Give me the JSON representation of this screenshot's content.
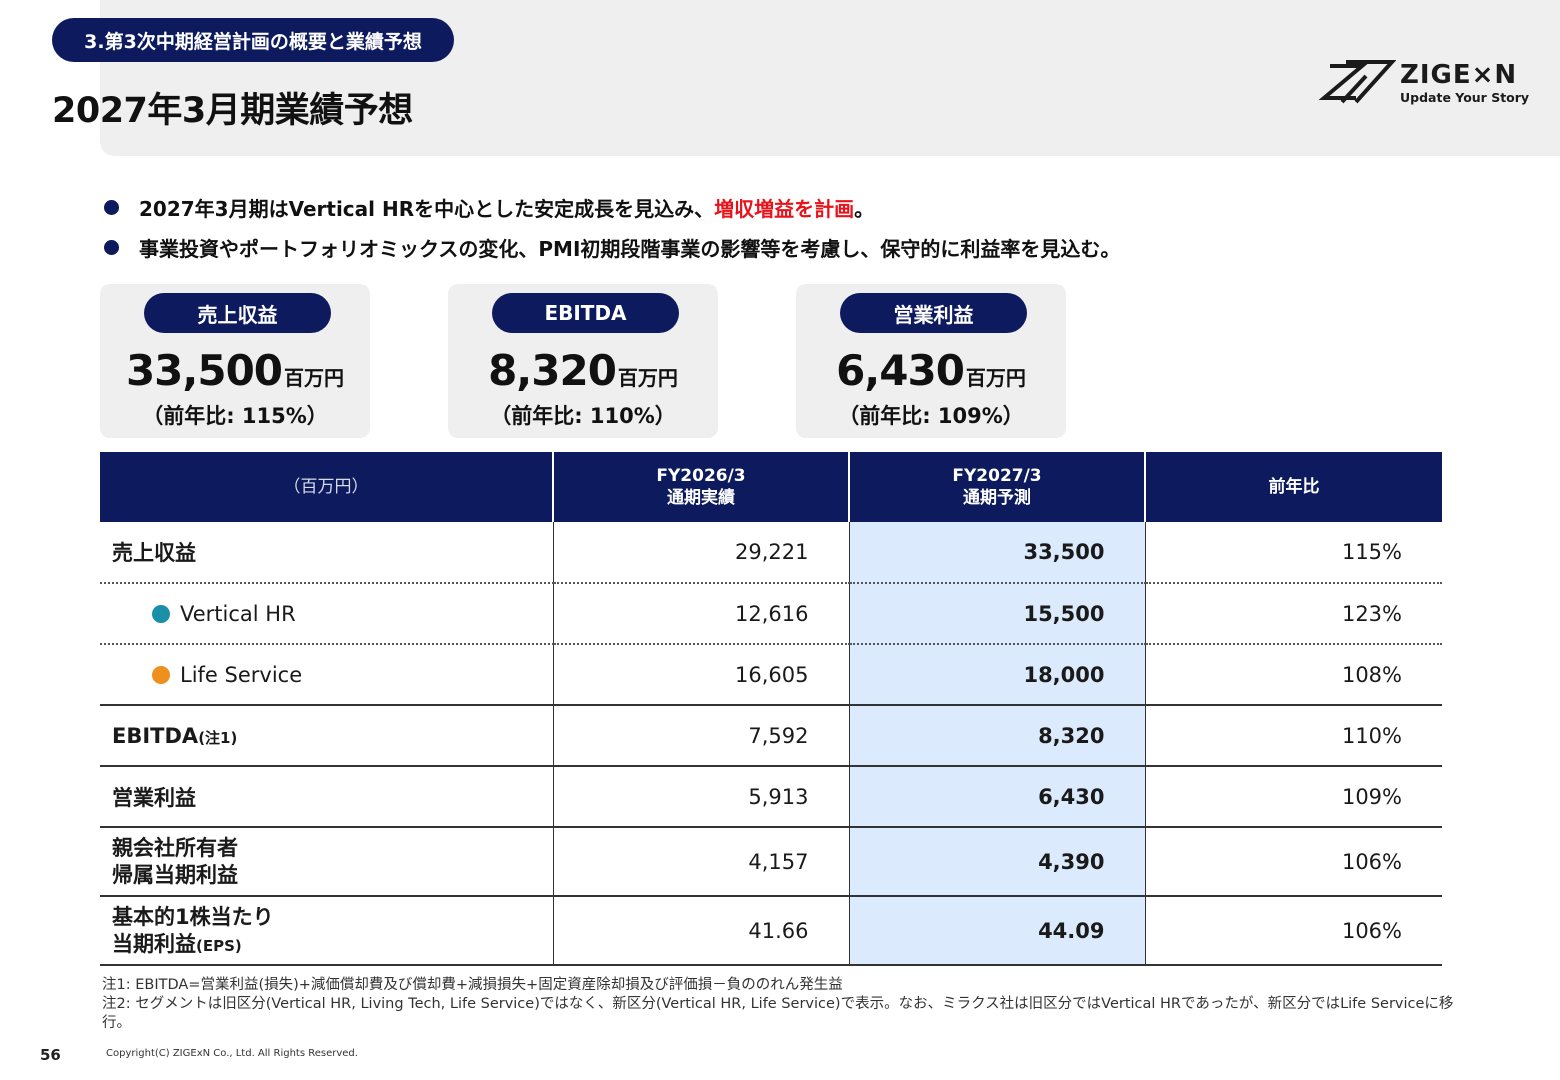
{
  "header": {
    "section": "3.第3次中期経営計画の概要と業績予想",
    "title": "2027年3月期業績予想"
  },
  "logo": {
    "name": "ZIGE×N",
    "tagline": "Update Your Story"
  },
  "bullets": [
    {
      "text_before": "2027年3月期はVertical HRを中心とした安定成長を見込み、",
      "highlight": "増収増益を計画",
      "text_after": "。"
    },
    {
      "text": "事業投資やポートフォリオミックスの変化、PMI初期段階事業の影響等を考慮し、保守的に利益率を見込む。"
    }
  ],
  "kpis": [
    {
      "label": "売上収益",
      "value": "33,500",
      "unit": "百万円",
      "yoy": "（前年比: 115%）"
    },
    {
      "label": "EBITDA",
      "value": "8,320",
      "unit": "百万円",
      "yoy": "（前年比: 110%）"
    },
    {
      "label": "営業利益",
      "value": "6,430",
      "unit": "百万円",
      "yoy": "（前年比: 109%）"
    }
  ],
  "table": {
    "headers": {
      "unit": "（百万円）",
      "actual_1": "FY2026/3",
      "actual_2": "通期実績",
      "forecast_1": "FY2027/3",
      "forecast_2": "通期予測",
      "ratio": "前年比"
    },
    "rows": [
      {
        "label": "売上収益",
        "actual": "29,221",
        "forecast": "33,500",
        "ratio": "115%"
      },
      {
        "label": "Vertical HR",
        "actual": "12,616",
        "forecast": "15,500",
        "ratio": "123%"
      },
      {
        "label": "Life Service",
        "actual": "16,605",
        "forecast": "18,000",
        "ratio": "108%"
      },
      {
        "label": "EBITDA",
        "label_note": "(注1)",
        "actual": "7,592",
        "forecast": "8,320",
        "ratio": "110%"
      },
      {
        "label": "営業利益",
        "actual": "5,913",
        "forecast": "6,430",
        "ratio": "109%"
      },
      {
        "label_1": "親会社所有者",
        "label_2": "帰属当期利益",
        "actual": "4,157",
        "forecast": "4,390",
        "ratio": "106%"
      },
      {
        "label_1": "基本的1株当たり",
        "label_2": "当期利益",
        "label_2_note": "(EPS)",
        "actual": "41.66",
        "forecast": "44.09",
        "ratio": "106%"
      }
    ]
  },
  "colors": {
    "navy": "#0d1a5e",
    "highlight_red": "#e8121a",
    "forecast_bg": "#dbeafc",
    "vertical_hr": "#1a8fa8",
    "life_service": "#ef8f1e"
  },
  "notes": [
    "注1: EBITDA=営業利益(損失)+減価償却費及び償却費+減損損失+固定資産除却損及び評価損－負ののれん発生益",
    "注2: セグメントは旧区分(Vertical HR, Living Tech, Life Service)ではなく、新区分(Vertical HR, Life Service)で表示。なお、ミラクス社は旧区分ではVertical HRであったが、新区分ではLife Serviceに移行。"
  ],
  "footer": {
    "page_number": "56",
    "copyright": "Copyright(C)  ZIGExN Co., Ltd. All Rights Reserved."
  }
}
